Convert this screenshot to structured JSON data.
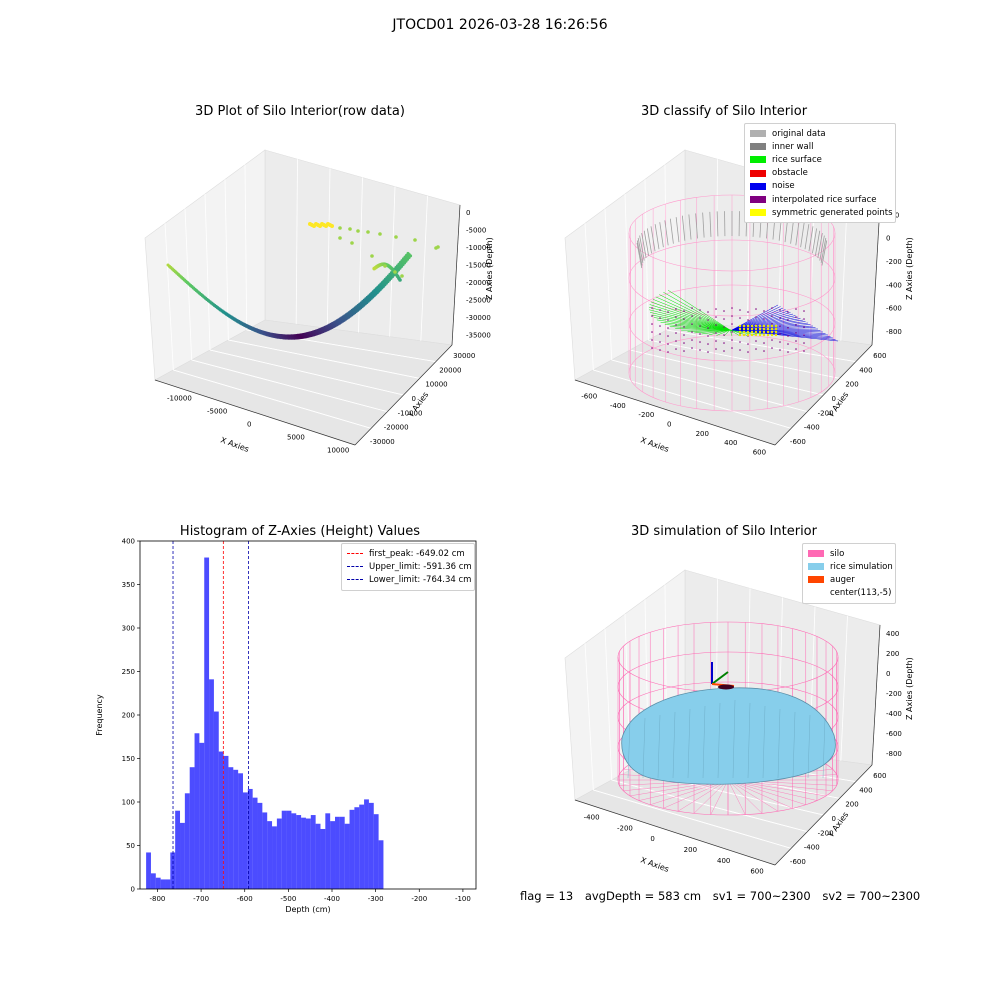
{
  "figure": {
    "suptitle": "JTOCD01 2026-03-28 16:26:56"
  },
  "footer": {
    "flag": "flag = 13",
    "avg_depth": "avgDepth = 583 cm",
    "sv1": "sv1 = 700~2300",
    "sv2": "sv2 = 700~2300"
  },
  "chart_data": [
    {
      "type": "scatter",
      "dimension": "3d",
      "title": "3D Plot of Silo Interior(row data)",
      "xlabel": "X Axies",
      "ylabel": "Y Axies",
      "zlabel": "Z Axies (Depth)",
      "x_ticks": [
        "-10000",
        "-5000",
        "0",
        "5000",
        "10000"
      ],
      "y_ticks": [
        "-30000",
        "-20000",
        "-10000",
        "0",
        "10000",
        "20000",
        "30000"
      ],
      "z_ticks": [
        "0",
        "-5000",
        "-10000",
        "-15000",
        "-20000",
        "-25000",
        "-30000",
        "-35000"
      ],
      "colormap": "viridis"
    },
    {
      "type": "scatter",
      "dimension": "3d",
      "title": "3D classify of Silo Interior",
      "xlabel": "X Axies",
      "ylabel": "Y Axies",
      "zlabel": "Z Axies (Depth)",
      "x_ticks": [
        "-600",
        "-400",
        "-200",
        "0",
        "200",
        "400",
        "600"
      ],
      "y_ticks": [
        "-600",
        "-400",
        "-200",
        "0",
        "200",
        "400",
        "600"
      ],
      "z_ticks": [
        "200",
        "0",
        "-200",
        "-400",
        "-600",
        "-800"
      ],
      "legend": [
        {
          "label": "original data",
          "color": "#b0b0b0"
        },
        {
          "label": "inner wall",
          "color": "#808080"
        },
        {
          "label": "rice surface",
          "color": "#00ee00"
        },
        {
          "label": "obstacle",
          "color": "#ee0000"
        },
        {
          "label": "noise",
          "color": "#0000ee"
        },
        {
          "label": "interpolated rice surface",
          "color": "#800080"
        },
        {
          "label": "symmetric generated points",
          "color": "#ffff00"
        }
      ]
    },
    {
      "type": "bar",
      "title": "Histogram of Z-Axies (Height) Values",
      "xlabel": "Depth (cm)",
      "ylabel": "Frequency",
      "xlim": [
        -840,
        -70
      ],
      "ylim": [
        0,
        400
      ],
      "x_ticks": [
        -800,
        -700,
        -600,
        -500,
        -400,
        -300,
        -200,
        -100
      ],
      "y_ticks": [
        0,
        50,
        100,
        150,
        200,
        250,
        300,
        350,
        400
      ],
      "bin_width": 11.1,
      "bin_start": -826,
      "values": [
        42,
        18,
        13,
        11,
        11,
        42,
        90,
        76,
        110,
        140,
        179,
        168,
        381,
        241,
        204,
        158,
        153,
        140,
        137,
        133,
        111,
        115,
        105,
        99,
        88,
        78,
        72,
        81,
        90,
        90,
        87,
        85,
        82,
        81,
        85,
        75,
        69,
        87,
        78,
        83,
        83,
        75,
        91,
        94,
        97,
        103,
        99,
        86,
        56
      ],
      "bar_color": "#0000ff",
      "vlines": [
        {
          "label": "first_peak: -649.02 cm",
          "x": -649.02,
          "color": "#ff0000"
        },
        {
          "label": "Upper_limit: -591.36 cm",
          "x": -591.36,
          "color": "#0000aa"
        },
        {
          "label": "Lower_limit: -764.34 cm",
          "x": -764.34,
          "color": "#0000aa"
        }
      ],
      "legend_position": "top-right"
    },
    {
      "type": "surface",
      "dimension": "3d",
      "title": "3D simulation of Silo Interior",
      "xlabel": "X Axies",
      "ylabel": "Y Axies",
      "zlabel": "Z Axies (Depth)",
      "x_ticks": [
        "-400",
        "-200",
        "0",
        "200",
        "400",
        "600"
      ],
      "y_ticks": [
        "-600",
        "-400",
        "-200",
        "0",
        "200",
        "400",
        "600"
      ],
      "z_ticks": [
        "400",
        "200",
        "0",
        "-200",
        "-400",
        "-600",
        "-800"
      ],
      "legend": [
        {
          "label": "silo",
          "color": "#ff69b4"
        },
        {
          "label": "rice simulation",
          "color": "#87ceeb"
        },
        {
          "label": "auger",
          "color": "#ff4500"
        },
        {
          "label": "center(113,-5)",
          "color": ""
        }
      ]
    }
  ]
}
